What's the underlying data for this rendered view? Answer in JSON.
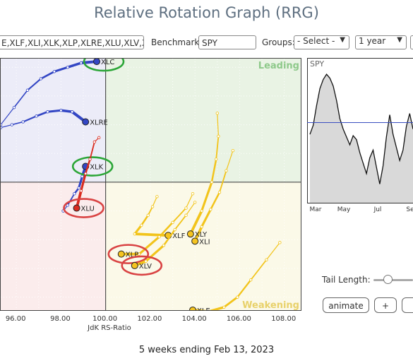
{
  "title": "Relative Rotation Graph (RRG)",
  "toolbar": {
    "symbols_value": "E,XLF,XLI,XLK,XLP,XLRE,XLU,XLV,XL",
    "benchmark_label": "Benchmark:",
    "benchmark_value": "SPY",
    "groups_label": "Groups:",
    "groups_selected": "- Select -",
    "period_selected": "1 year"
  },
  "controls": {
    "tail_length_label": "Tail Length:",
    "animate_label": "animate",
    "plus_label": "+",
    "tail_length": 0.25
  },
  "caption": "5 weeks ending Feb 13, 2023",
  "colors": {
    "leading": "#e9f3e4",
    "weakening": "#fbf9e8",
    "lagging": "#fbecec",
    "improving": "#ececf8",
    "blue_tail": "#3346c4",
    "yellow_tail": "#f2c41b",
    "red_tail": "#d92b1f",
    "highlight_green": "#2ca638",
    "highlight_red": "#d94343"
  },
  "chart_data": [
    {
      "type": "scatter",
      "xlabel": "JdK RS-Ratio",
      "xlim": [
        95.3,
        108.8
      ],
      "ylim": [
        95.5,
        104.3
      ],
      "center": [
        100,
        100
      ],
      "x_ticks": [
        "96.00",
        "98.00",
        "100.00",
        "102.00",
        "104.00",
        "106.00",
        "108.00"
      ],
      "x_tick_values": [
        96,
        98,
        100,
        102,
        104,
        106,
        108
      ],
      "quadrants": {
        "leading": "Leading",
        "weakening": "Weakening"
      },
      "series": [
        {
          "name": "XLC",
          "color": "blue",
          "highlight": "green",
          "tail": [
            [
              95.3,
              102.0
            ],
            [
              95.9,
              102.6
            ],
            [
              96.5,
              103.2
            ],
            [
              97.1,
              103.6
            ],
            [
              97.7,
              103.85
            ],
            [
              98.3,
              104.0
            ],
            [
              98.9,
              104.15
            ],
            [
              99.6,
              104.2
            ]
          ]
        },
        {
          "name": "XLRE",
          "color": "blue",
          "tail": [
            [
              95.3,
              101.9
            ],
            [
              95.8,
              102.0
            ],
            [
              96.3,
              102.1
            ],
            [
              96.9,
              102.3
            ],
            [
              97.4,
              102.45
            ],
            [
              98.0,
              102.5
            ],
            [
              98.5,
              102.45
            ],
            [
              99.1,
              102.1
            ]
          ]
        },
        {
          "name": "XLK",
          "color": "blue",
          "highlight": "green",
          "tail": [
            [
              98.1,
              99.0
            ],
            [
              98.3,
              99.2
            ],
            [
              98.6,
              99.6
            ],
            [
              98.8,
              99.8
            ],
            [
              98.95,
              100.2
            ],
            [
              99.1,
              100.55
            ]
          ]
        },
        {
          "name": "XLU",
          "color": "red",
          "highlight": "red",
          "tail": [
            [
              99.7,
              101.55
            ],
            [
              99.5,
              101.4
            ],
            [
              99.3,
              100.8
            ],
            [
              99.1,
              100.3
            ],
            [
              98.9,
              99.7
            ],
            [
              98.7,
              99.1
            ]
          ]
        },
        {
          "name": "XLF",
          "color": "yellow",
          "tail": [
            [
              102.3,
              99.5
            ],
            [
              102.1,
              99.15
            ],
            [
              101.9,
              98.85
            ],
            [
              101.6,
              98.5
            ],
            [
              101.3,
              98.2
            ],
            [
              102.8,
              98.15
            ]
          ]
        },
        {
          "name": "XLP",
          "color": "yellow",
          "highlight": "red",
          "tail": [
            [
              103.9,
              99.6
            ],
            [
              103.6,
              99.1
            ],
            [
              103.0,
              98.6
            ],
            [
              102.4,
              98.1
            ],
            [
              101.5,
              97.5
            ],
            [
              100.7,
              97.5
            ]
          ]
        },
        {
          "name": "XLV",
          "color": "yellow",
          "highlight": "red",
          "tail": [
            [
              104.0,
              99.3
            ],
            [
              103.6,
              98.85
            ],
            [
              103.1,
              98.35
            ],
            [
              102.6,
              97.8
            ],
            [
              101.8,
              97.25
            ],
            [
              101.3,
              97.1
            ]
          ]
        },
        {
          "name": "XLE",
          "color": "yellow",
          "tail": [
            [
              107.8,
              97.9
            ],
            [
              107.2,
              97.3
            ],
            [
              106.5,
              96.6
            ],
            [
              105.9,
              96.0
            ],
            [
              105.3,
              95.65
            ],
            [
              104.6,
              95.5
            ],
            [
              103.9,
              95.55
            ]
          ]
        },
        {
          "name": "XLI",
          "color": "yellow",
          "tail": [
            [
              105.7,
              101.1
            ],
            [
              105.4,
              100.4
            ],
            [
              105.1,
              99.65
            ],
            [
              104.7,
              99.05
            ],
            [
              104.3,
              98.45
            ],
            [
              104.0,
              97.95
            ]
          ]
        },
        {
          "name": "XLY",
          "color": "yellow",
          "tail": [
            [
              105.0,
              102.4
            ],
            [
              105.05,
              101.6
            ],
            [
              104.95,
              100.8
            ],
            [
              104.75,
              100.0
            ],
            [
              104.3,
              99.0
            ],
            [
              103.8,
              98.2
            ]
          ]
        }
      ]
    },
    {
      "type": "line",
      "title": "SPY",
      "x_labels": [
        "Mar",
        "May",
        "Jul",
        "Se"
      ],
      "values": [
        48,
        55,
        70,
        83,
        90,
        94,
        91,
        85,
        74,
        60,
        52,
        46,
        40,
        47,
        44,
        34,
        26,
        18,
        30,
        36,
        23,
        10,
        24,
        46,
        63,
        48,
        38,
        28,
        36,
        54,
        64,
        52
      ],
      "ylim": [
        0,
        100
      ],
      "reference_value": 57
    }
  ]
}
